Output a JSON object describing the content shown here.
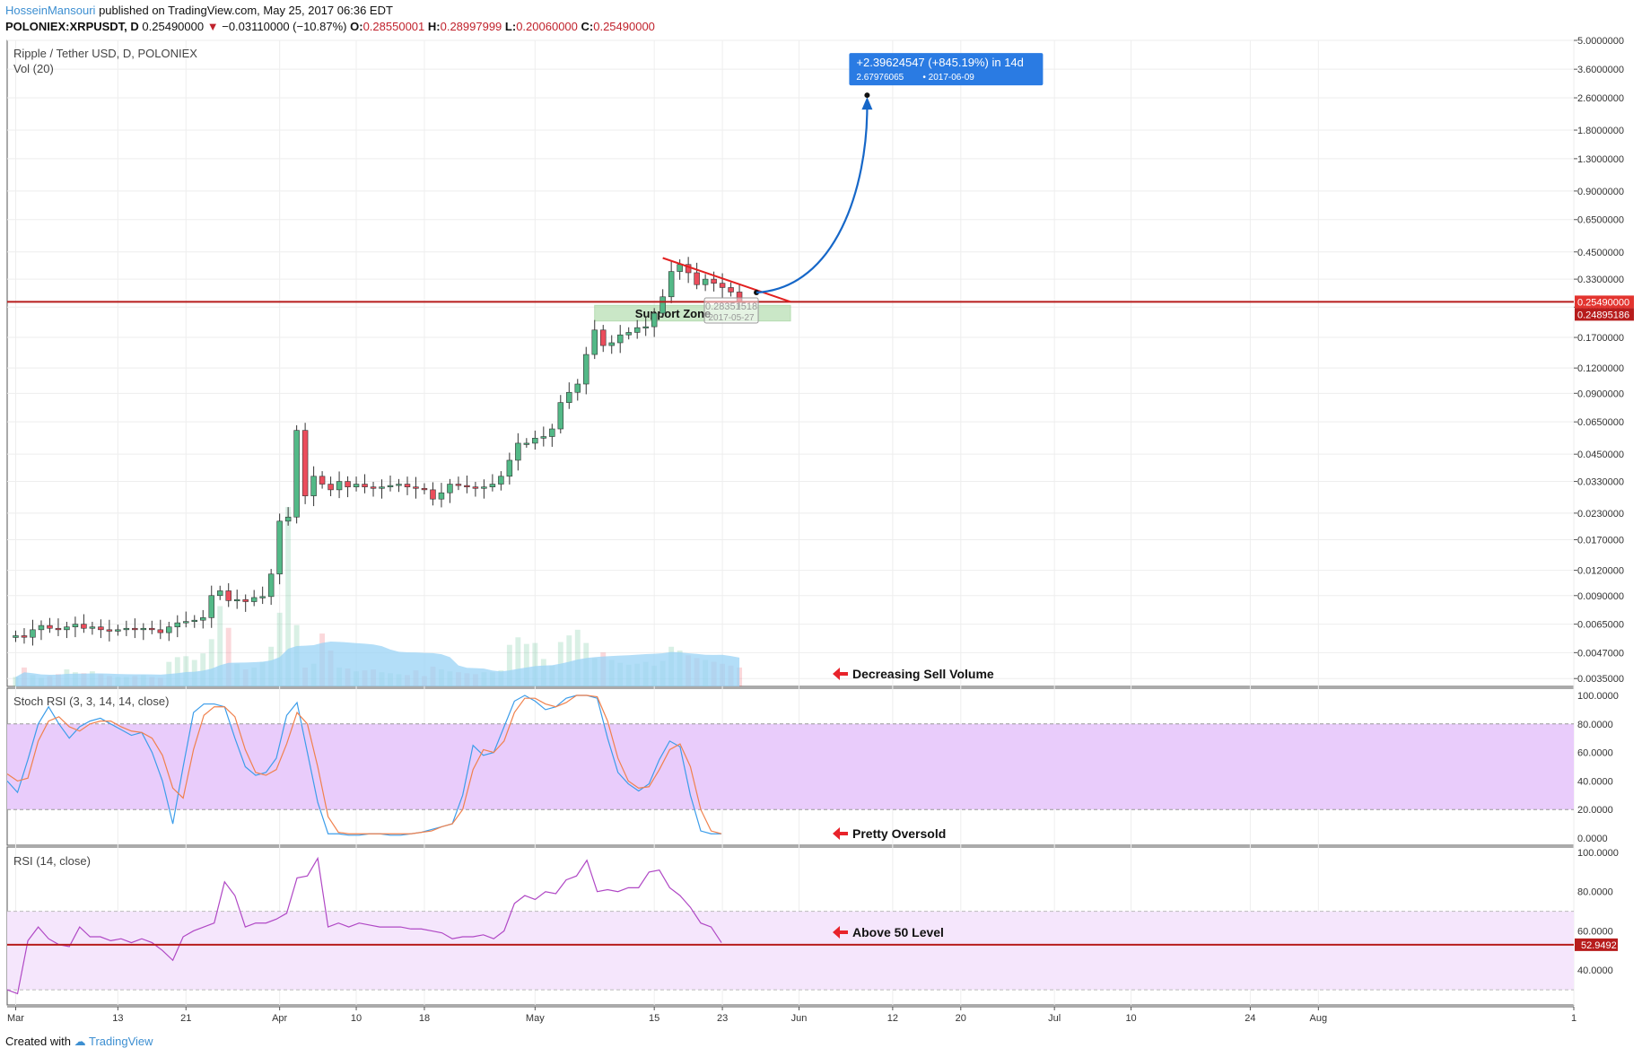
{
  "header": {
    "author": "HosseinMansouri",
    "published": "published on TradingView.com, May 25, 2017 06:36 EDT",
    "symbol": "POLONIEX:XRPUSDT, D",
    "last": "0.25490000",
    "change": "−0.03110000 (−10.87%)",
    "o_label": "O:",
    "o_value": "0.28550001",
    "h_label": "H:",
    "h_value": "0.28997999",
    "l_label": "L:",
    "l_value": "0.20060000",
    "c_label": "C:",
    "c_value": "0.25490000"
  },
  "footer": {
    "created_with": "Created with",
    "brand": "TradingView"
  },
  "colors": {
    "up": "#53b987",
    "down": "#eb4d5c",
    "support_line": "#b71c1c",
    "stoch_k": "#3c9dea",
    "stoch_d": "#f0814d",
    "rsi": "#b048c5",
    "stoch_band": "#e9ccfb",
    "rsi_band": "#f5e6fc",
    "arrow_blue": "#1667c8",
    "label_blue": "#2a7be3",
    "volume_ma": "#9ad3f5",
    "trend_red": "#e22020",
    "annotation_red": "#e8232b",
    "grid": "#eeeeee"
  },
  "chart_data": [
    {
      "type": "candlestick",
      "title": "Ripple / Tether USD, D, POLONIEX",
      "log_scale": true,
      "ylim": [
        0.0032,
        5.0
      ],
      "y_ticks": [
        "5.0000000",
        "3.6000000",
        "2.6000000",
        "1.8000000",
        "1.3000000",
        "0.9000000",
        "0.6500000",
        "0.4500000",
        "0.3300000",
        "0.2400000",
        "0.1700000",
        "0.1200000",
        "0.0900000",
        "0.0650000",
        "0.0450000",
        "0.0330000",
        "0.0230000",
        "0.0170000",
        "0.0120000",
        "0.0090000",
        "0.0065000",
        "0.0047000",
        "0.0035000"
      ],
      "price_labels": [
        "0.25490000",
        "0.24895186"
      ],
      "x_start_date": "2017-02-28",
      "x_end_date": "2017-08-31",
      "x_ticks": [
        {
          "date": "2017-03-01",
          "label": "Mar"
        },
        {
          "date": "2017-03-13",
          "label": "13"
        },
        {
          "date": "2017-03-21",
          "label": "21"
        },
        {
          "date": "2017-04-01",
          "label": "Apr"
        },
        {
          "date": "2017-04-10",
          "label": "10"
        },
        {
          "date": "2017-04-18",
          "label": "18"
        },
        {
          "date": "2017-05-01",
          "label": "May"
        },
        {
          "date": "2017-05-15",
          "label": "15"
        },
        {
          "date": "2017-05-23",
          "label": "23"
        },
        {
          "date": "2017-06-01",
          "label": "Jun"
        },
        {
          "date": "2017-06-12",
          "label": "12"
        },
        {
          "date": "2017-06-20",
          "label": "20"
        },
        {
          "date": "2017-07-01",
          "label": "Jul"
        },
        {
          "date": "2017-07-10",
          "label": "10"
        },
        {
          "date": "2017-07-24",
          "label": "24"
        },
        {
          "date": "2017-08-01",
          "label": "Aug"
        },
        {
          "date": "2017-08-31",
          "label": "1"
        }
      ],
      "close": [
        0.0057,
        0.0056,
        0.0061,
        0.0064,
        0.0062,
        0.0061,
        0.0063,
        0.0065,
        0.0062,
        0.0063,
        0.0061,
        0.006,
        0.0061,
        0.0062,
        0.0061,
        0.0062,
        0.0061,
        0.0059,
        0.0063,
        0.0066,
        0.0067,
        0.0068,
        0.007,
        0.009,
        0.0095,
        0.0085,
        0.0086,
        0.0084,
        0.0088,
        0.0089,
        0.0115,
        0.021,
        0.022,
        0.059,
        0.028,
        0.035,
        0.032,
        0.03,
        0.033,
        0.031,
        0.032,
        0.031,
        0.0305,
        0.031,
        0.0315,
        0.032,
        0.031,
        0.0305,
        0.03,
        0.027,
        0.029,
        0.032,
        0.0315,
        0.031,
        0.0305,
        0.031,
        0.032,
        0.035,
        0.042,
        0.051,
        0.051,
        0.054,
        0.055,
        0.06,
        0.081,
        0.091,
        0.1,
        0.14,
        0.185,
        0.155,
        0.16,
        0.175,
        0.18,
        0.19,
        0.192,
        0.224,
        0.27,
        0.36,
        0.39,
        0.355,
        0.31,
        0.33,
        0.315,
        0.3,
        0.285,
        0.2549
      ],
      "volume": [
        100,
        200,
        120,
        90,
        110,
        130,
        180,
        150,
        140,
        160,
        130,
        110,
        100,
        100,
        110,
        120,
        100,
        90,
        260,
        310,
        320,
        280,
        350,
        500,
        850,
        620,
        240,
        180,
        200,
        260,
        420,
        780,
        1900,
        650,
        200,
        240,
        560,
        380,
        200,
        190,
        160,
        170,
        180,
        150,
        140,
        130,
        120,
        170,
        110,
        210,
        180,
        160,
        150,
        140,
        130,
        150,
        150,
        170,
        440,
        520,
        450,
        460,
        290,
        220,
        470,
        540,
        600,
        460,
        300,
        360,
        280,
        250,
        230,
        240,
        260,
        220,
        270,
        420,
        380,
        330,
        300,
        280,
        260,
        240,
        220,
        200
      ],
      "volume_ma_label": "Vol (20)",
      "trendline": {
        "from": {
          "date": "2017-05-16",
          "value": 0.42
        },
        "to": {
          "date": "2017-05-31",
          "value": 0.255
        }
      },
      "support_zone": {
        "label": "Support Zone",
        "from_date": "2017-05-08",
        "to_date": "2017-05-31",
        "low": 0.205,
        "high": 0.245
      },
      "support_level": 0.2549,
      "dashed_tooltip": {
        "value": "0.28351518",
        "date": "2017-05-27"
      },
      "projection": {
        "from": {
          "date": "2017-05-27",
          "value": 0.2835
        },
        "to": {
          "date": "2017-06-09",
          "value": 2.67976065
        },
        "label": "+2.39624547 (+845.19%) in 14d",
        "sublabel_value": "2.67976065",
        "sublabel_date": "2017-06-09"
      },
      "annotation": "Decreasing Sell Volume"
    },
    {
      "type": "line",
      "title": "Stoch RSI (3, 3, 14, 14, close)",
      "ylim": [
        0,
        100
      ],
      "y_ticks": [
        "100.0000",
        "80.0000",
        "60.0000",
        "40.0000",
        "20.0000",
        "0.0000"
      ],
      "band": [
        20,
        80
      ],
      "series": [
        {
          "name": "K",
          "values": [
            40,
            32,
            55,
            80,
            92,
            80,
            70,
            78,
            82,
            84,
            80,
            76,
            72,
            74,
            60,
            40,
            10,
            50,
            88,
            94,
            94,
            92,
            70,
            50,
            44,
            46,
            56,
            86,
            95,
            60,
            25,
            3,
            3,
            2,
            2,
            3,
            3,
            2,
            2,
            3,
            4,
            6,
            8,
            10,
            30,
            65,
            58,
            60,
            78,
            96,
            100,
            96,
            90,
            92,
            98,
            100,
            100,
            98,
            70,
            46,
            38,
            33,
            38,
            55,
            68,
            64,
            30,
            5,
            3,
            3
          ]
        },
        {
          "name": "D",
          "values": [
            45,
            40,
            42,
            68,
            82,
            85,
            78,
            75,
            80,
            82,
            82,
            78,
            75,
            74,
            70,
            58,
            35,
            28,
            62,
            86,
            92,
            92,
            85,
            62,
            46,
            44,
            48,
            66,
            88,
            80,
            50,
            15,
            4,
            3,
            3,
            3,
            3,
            3,
            3,
            3,
            4,
            5,
            8,
            10,
            20,
            48,
            62,
            60,
            68,
            88,
            98,
            98,
            94,
            92,
            95,
            100,
            100,
            99,
            82,
            56,
            40,
            35,
            36,
            48,
            62,
            66,
            50,
            20,
            5,
            3
          ]
        }
      ],
      "annotation": "Pretty Oversold"
    },
    {
      "type": "line",
      "title": "RSI (14, close)",
      "ylim": [
        25,
        100
      ],
      "y_ticks": [
        "100.0000",
        "80.0000",
        "60.0000",
        "40.0000"
      ],
      "band": [
        30,
        70
      ],
      "last_value_label": "52.9492",
      "level_line": 52.9492,
      "series": [
        {
          "name": "RSI",
          "values": [
            30,
            28,
            55,
            62,
            56,
            53,
            52,
            62,
            57,
            57,
            55,
            56,
            54,
            56,
            54,
            50,
            45,
            57,
            60,
            62,
            64,
            85,
            78,
            62,
            64,
            64,
            66,
            69,
            87,
            88,
            97,
            62,
            64,
            62,
            64,
            63,
            62,
            62,
            62,
            61,
            61,
            60,
            59,
            56,
            57,
            57,
            58,
            56,
            60,
            74,
            78,
            76,
            80,
            79,
            86,
            88,
            96,
            80,
            81,
            80,
            82,
            82,
            90,
            91,
            82,
            78,
            72,
            64,
            62,
            54
          ]
        }
      ],
      "annotation": "Above 50 Level"
    }
  ]
}
